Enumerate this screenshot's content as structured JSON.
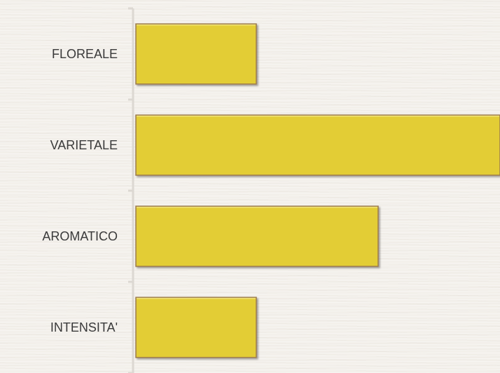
{
  "chart_data": {
    "type": "bar",
    "orientation": "horizontal",
    "categories": [
      "FLOREALE",
      "VARIETALE",
      "AROMATICO",
      "INTENSITA'"
    ],
    "values": [
      2,
      6,
      4,
      2
    ],
    "xlim": [
      0,
      6
    ],
    "title": "",
    "xlabel": "",
    "ylabel": "",
    "grid": false,
    "legend": "none",
    "colors": {
      "bar": "#e3cd35",
      "bar_edge": "#9a7a4e",
      "bar_highlight": "#f2e37a",
      "axis": "#dcd8d2",
      "label": "#3a3a3a",
      "background": "#f3f0eb"
    }
  }
}
